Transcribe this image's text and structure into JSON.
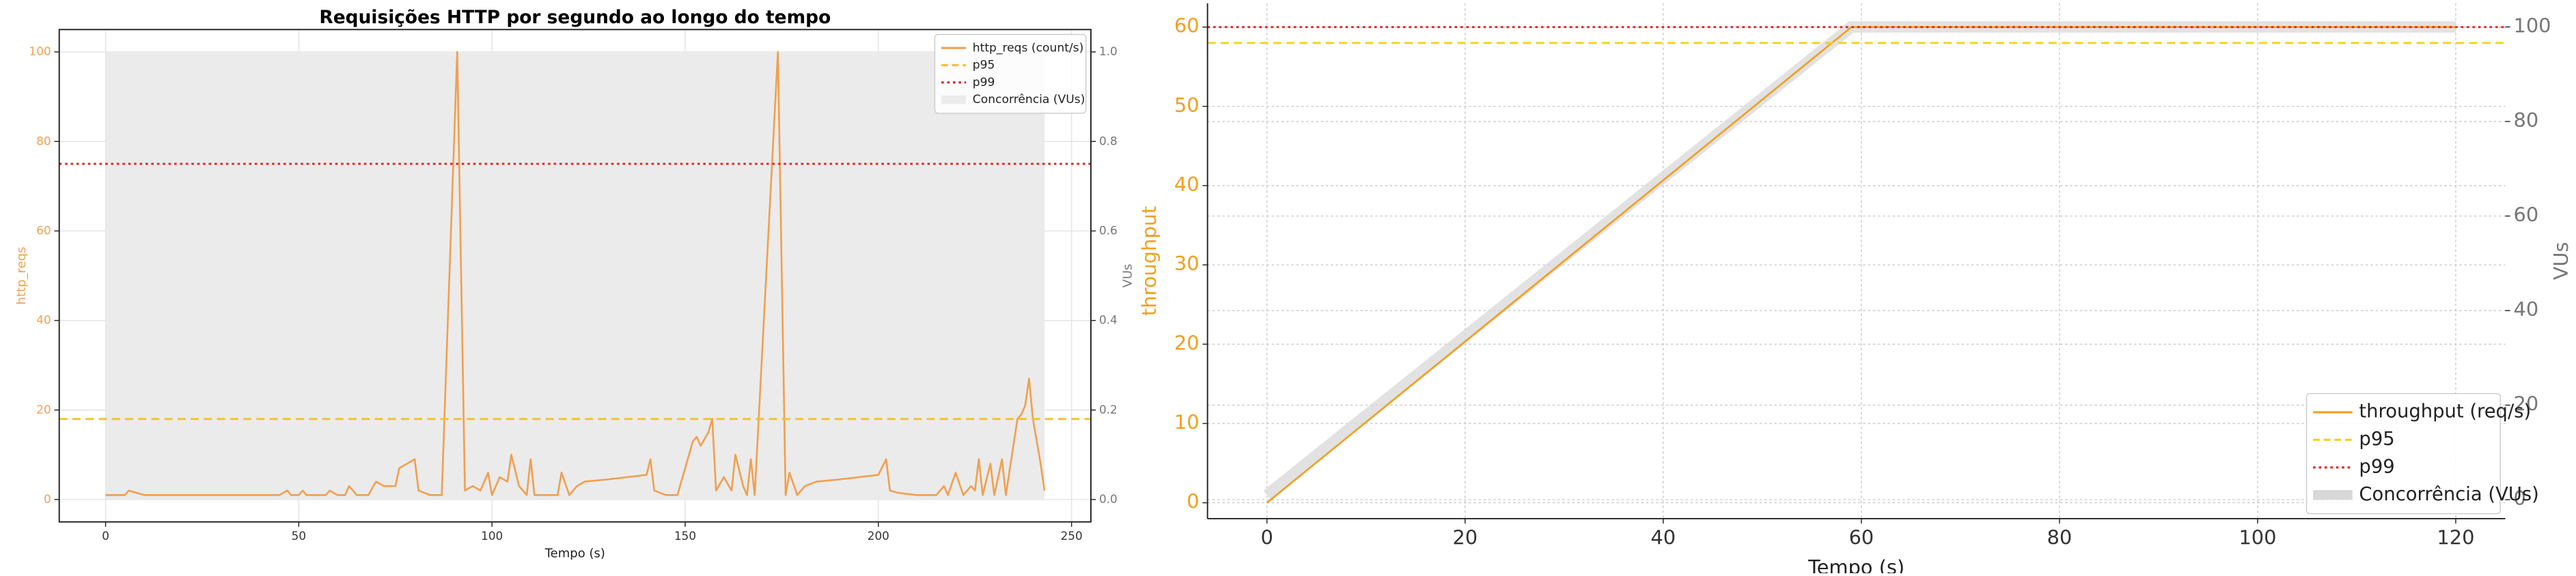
{
  "chart_data": [
    {
      "type": "line",
      "title": "Requisições HTTP por segundo ao longo do tempo",
      "xlabel": "Tempo (s)",
      "ylabel": "http_reqs",
      "y2label": "VUs",
      "xlim": [
        -12,
        255
      ],
      "xticks": [
        0,
        50,
        100,
        150,
        200,
        250
      ],
      "ylim": [
        -5,
        105
      ],
      "yticks": [
        0,
        20,
        40,
        60,
        80,
        100
      ],
      "y2lim": [
        -0.05,
        1.05
      ],
      "y2ticks": [
        {
          "value": 0,
          "label": "0.0"
        },
        {
          "value": 0.2,
          "label": "0.2"
        },
        {
          "value": 0.4,
          "label": "0.4"
        },
        {
          "value": 0.6,
          "label": "0.6"
        },
        {
          "value": 0.8,
          "label": "0.8"
        },
        {
          "value": 1,
          "label": "1.0"
        }
      ],
      "grid": true,
      "legend": "upper right",
      "series": [
        {
          "name": "http_reqs (count/s)",
          "style": "line",
          "color": "#f0a050",
          "x": [
            0,
            5,
            6,
            8,
            10,
            15,
            20,
            25,
            30,
            35,
            40,
            45,
            47,
            48,
            50,
            51,
            52,
            55,
            57,
            58,
            60,
            62,
            63,
            65,
            67,
            68,
            70,
            72,
            75,
            76,
            78,
            80,
            81,
            84,
            87,
            91,
            93,
            95,
            97,
            99,
            100,
            102,
            104,
            105,
            107,
            109,
            110,
            111,
            114,
            117,
            118,
            120,
            122,
            124,
            130,
            135,
            140,
            141,
            142,
            145,
            148,
            150,
            152,
            153,
            154,
            156,
            157,
            158,
            160,
            162,
            163,
            165,
            166,
            167,
            168,
            174,
            176,
            177,
            179,
            181,
            184,
            190,
            195,
            200,
            202,
            203,
            205,
            210,
            215,
            217,
            218,
            220,
            222,
            224,
            225,
            226,
            227,
            229,
            230,
            232,
            233,
            236,
            237,
            238,
            239,
            240,
            242,
            243
          ],
          "values": [
            1,
            1,
            2,
            1.5,
            1,
            1,
            1,
            1,
            1,
            1,
            1,
            1,
            2,
            1,
            1,
            2,
            1,
            1,
            1,
            2,
            1,
            1,
            3,
            1,
            1,
            1,
            4,
            3,
            3,
            7,
            8,
            9,
            2,
            1,
            1,
            100,
            2,
            3,
            2,
            6,
            1,
            5,
            4,
            10,
            3,
            1,
            9,
            1,
            1,
            1,
            6,
            1,
            3,
            4,
            4.5,
            5,
            5.5,
            9,
            2,
            1,
            1,
            7,
            13,
            14,
            12,
            15,
            18,
            2,
            5,
            2,
            10,
            3,
            1,
            9,
            1,
            100,
            1,
            6,
            1,
            3,
            4,
            4.5,
            5,
            5.5,
            9,
            2,
            1.5,
            1,
            1,
            3,
            1,
            6,
            1,
            3,
            2,
            9,
            1,
            8,
            1,
            9,
            1,
            18,
            19,
            21,
            27,
            18,
            8,
            2
          ]
        },
        {
          "name": "p95",
          "style": "hline",
          "dash": "dashed",
          "color": "#f2c12e",
          "values": [
            18
          ]
        },
        {
          "name": "p99",
          "style": "hline",
          "dash": "dotted",
          "color": "#e02020",
          "values": [
            75
          ]
        },
        {
          "name": "Concorrência (VUs)",
          "style": "area",
          "axis": "y2",
          "color": "#ebebeb",
          "x": [
            0,
            243
          ],
          "values": [
            1,
            1
          ]
        }
      ]
    },
    {
      "type": "line",
      "xlabel": "Tempo (s)",
      "ylabel": "throughput",
      "y2label": "VUs",
      "xlim": [
        -6,
        125
      ],
      "xticks": [
        0,
        20,
        40,
        60,
        80,
        100,
        120
      ],
      "ylim": [
        -2,
        63
      ],
      "yticks": [
        0,
        10,
        20,
        30,
        40,
        50,
        60
      ],
      "y2lim": [
        -4,
        105
      ],
      "y2ticks": [
        0,
        20,
        40,
        60,
        80,
        100
      ],
      "grid": true,
      "legend": "lower right",
      "series": [
        {
          "name": "throughput (req/s)",
          "style": "line",
          "color": "#f0a020",
          "x": [
            0,
            59,
            120
          ],
          "values": [
            0,
            60,
            60
          ]
        },
        {
          "name": "p95",
          "style": "hline",
          "dash": "dashed",
          "color": "#f5d020",
          "values": [
            58
          ]
        },
        {
          "name": "p99",
          "style": "hline",
          "dash": "dotted",
          "color": "#e02020",
          "values": [
            60
          ]
        },
        {
          "name": "Concorrência (VUs)",
          "style": "band",
          "axis": "y2",
          "color": "#d8d8d8",
          "x": [
            0,
            59,
            120
          ],
          "values": [
            1,
            100,
            100
          ]
        }
      ]
    }
  ]
}
